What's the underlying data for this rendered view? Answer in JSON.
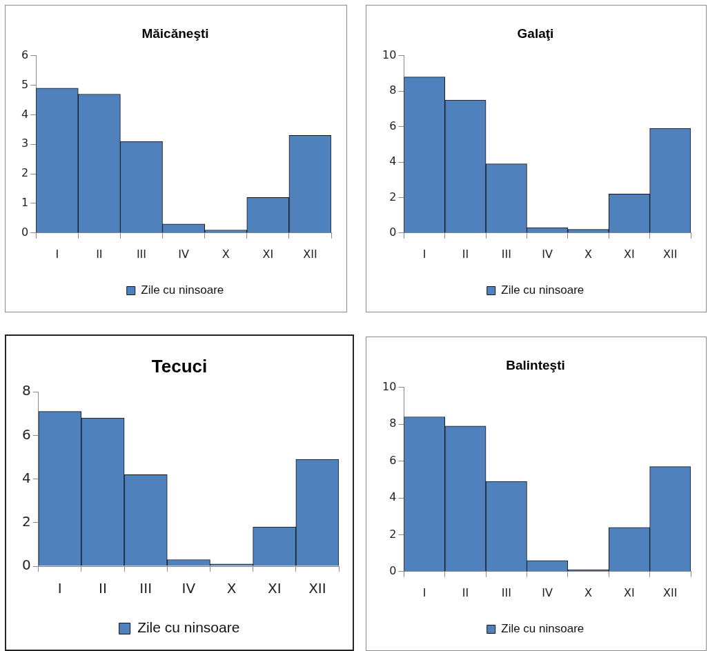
{
  "chart_data": [
    {
      "type": "bar",
      "title": "Măicăneşti",
      "categories": [
        "I",
        "II",
        "III",
        "IV",
        "X",
        "XI",
        "XII"
      ],
      "series": [
        {
          "name": "Zile cu ninsoare",
          "color": "#4f81bd",
          "values": [
            4.9,
            4.7,
            3.1,
            0.3,
            0.1,
            1.2,
            3.3
          ]
        }
      ],
      "ylim": [
        0,
        6
      ],
      "yticks": [
        0,
        1,
        2,
        3,
        4,
        5,
        6
      ],
      "grid": false,
      "legend": "bottom"
    },
    {
      "type": "bar",
      "title": "Galaţi",
      "categories": [
        "I",
        "II",
        "III",
        "IV",
        "X",
        "XI",
        "XII"
      ],
      "series": [
        {
          "name": "Zile cu ninsoare",
          "color": "#4f81bd",
          "values": [
            8.8,
            7.5,
            3.9,
            0.3,
            0.2,
            2.2,
            5.9
          ]
        }
      ],
      "ylim": [
        0,
        10
      ],
      "yticks": [
        0,
        2,
        4,
        6,
        8,
        10
      ],
      "grid": false,
      "legend": "bottom"
    },
    {
      "type": "bar",
      "title": "Tecuci",
      "categories": [
        "I",
        "II",
        "III",
        "IV",
        "X",
        "XI",
        "XII"
      ],
      "series": [
        {
          "name": "Zile cu ninsoare",
          "color": "#4f81bd",
          "values": [
            7.1,
            6.8,
            4.2,
            0.3,
            0.1,
            1.8,
            4.9
          ]
        }
      ],
      "ylim": [
        0,
        8
      ],
      "yticks": [
        0,
        2,
        4,
        6,
        8
      ],
      "grid": false,
      "legend": "bottom"
    },
    {
      "type": "bar",
      "title": "Balinteşti",
      "categories": [
        "I",
        "II",
        "III",
        "IV",
        "X",
        "XI",
        "XII"
      ],
      "series": [
        {
          "name": "Zile cu ninsoare",
          "color": "#4f81bd",
          "values": [
            8.4,
            7.9,
            4.9,
            0.6,
            0.1,
            2.4,
            5.7
          ]
        }
      ],
      "ylim": [
        0,
        10
      ],
      "yticks": [
        0,
        2,
        4,
        6,
        8,
        10
      ],
      "grid": false,
      "legend": "bottom"
    }
  ]
}
